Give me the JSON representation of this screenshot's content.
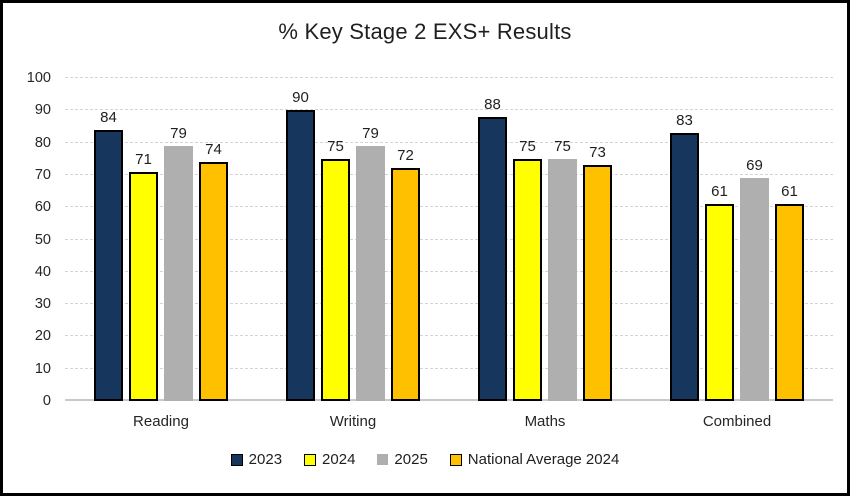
{
  "frame": {
    "background": "#ffffff",
    "border_color": "#000000"
  },
  "chart_data": {
    "type": "bar",
    "title": "% Key Stage 2 EXS+ Results",
    "categories": [
      "Reading",
      "Writing",
      "Maths",
      "Combined"
    ],
    "series": [
      {
        "name": "2023",
        "color": "#17365d",
        "border_color": "#000000",
        "values": [
          84,
          90,
          88,
          83
        ]
      },
      {
        "name": "2024",
        "color": "#ffff00",
        "border_color": "#000000",
        "values": [
          71,
          75,
          75,
          61
        ]
      },
      {
        "name": "2025",
        "color": "#afafaf",
        "border_color": null,
        "values": [
          79,
          79,
          75,
          69
        ]
      },
      {
        "name": "National Average 2024",
        "color": "#ffc000",
        "border_color": "#000000",
        "values": [
          74,
          72,
          73,
          61
        ]
      }
    ],
    "xlabel": "",
    "ylabel": "",
    "ylim": [
      0,
      100
    ],
    "yticks": [
      0,
      10,
      20,
      30,
      40,
      50,
      60,
      70,
      80,
      90,
      100
    ],
    "grid": true,
    "gridline_color": "#d4d4d4",
    "axis_line_color": "#c9c9c9",
    "tick_label_color": "#262626",
    "value_label_color": "#1f1f1f",
    "legend_position": "bottom"
  }
}
